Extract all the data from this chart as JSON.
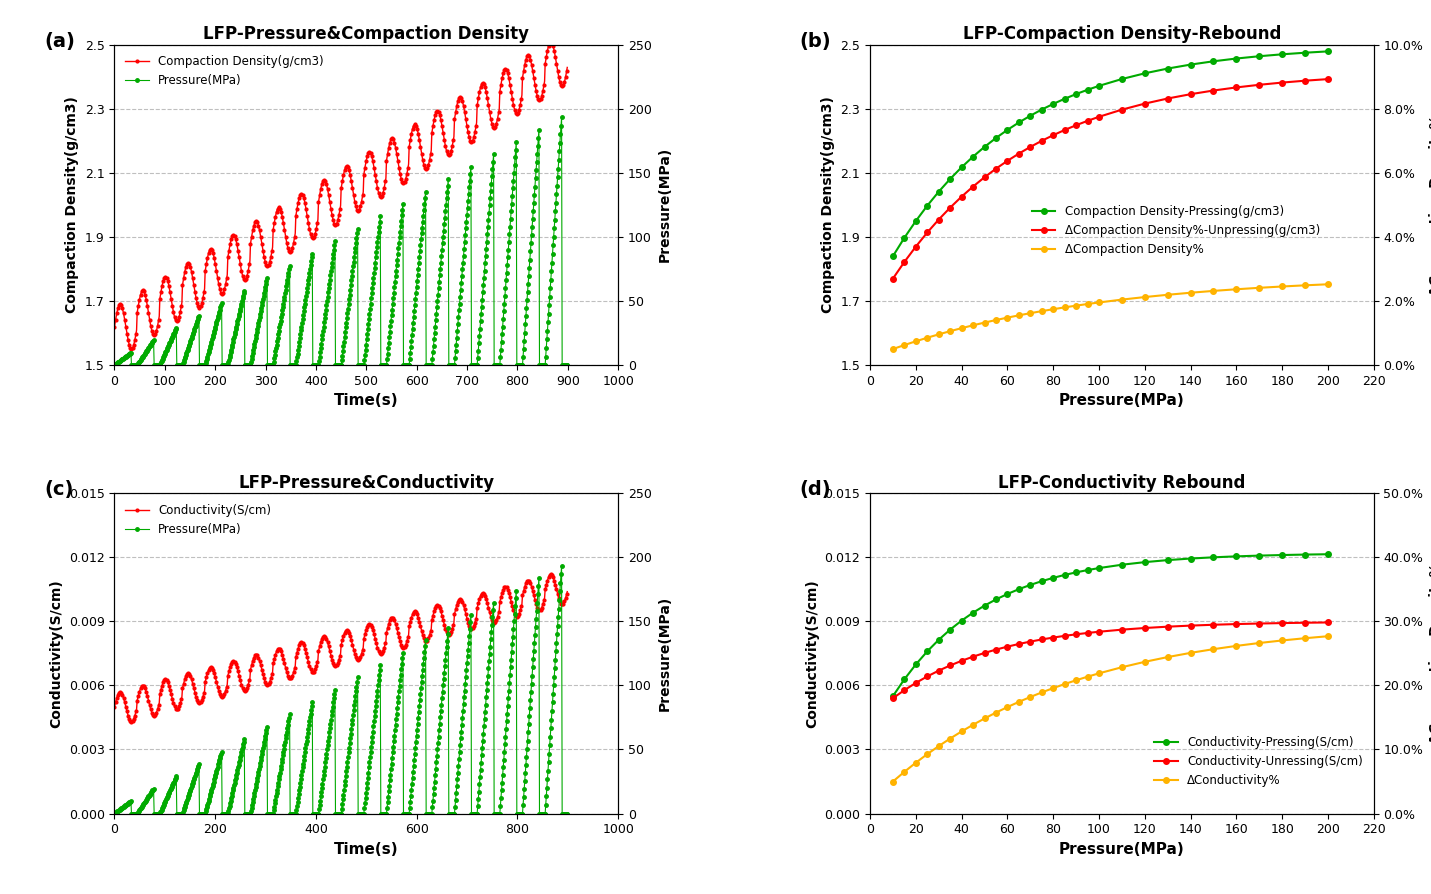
{
  "panel_a": {
    "title": "LFP-Pressure&Compaction Density",
    "xlabel": "Time(s)",
    "ylabel_left": "Compaction Density(g/cm3)",
    "ylabel_right": "Pressure(MPa)",
    "xlim": [
      0,
      1000
    ],
    "ylim_left": [
      1.5,
      2.5
    ],
    "ylim_right": [
      0,
      250
    ],
    "yticks_left": [
      1.5,
      1.7,
      1.9,
      2.1,
      2.3,
      2.5
    ],
    "yticks_right": [
      0,
      50,
      100,
      150,
      200,
      250
    ],
    "xticks": [
      0,
      100,
      200,
      300,
      400,
      500,
      600,
      700,
      800,
      900,
      1000
    ],
    "label": "(a)",
    "density_color": "#FF0000",
    "pressure_color": "#00AA00",
    "legend_density": "Compaction Density(g/cm3)",
    "legend_pressure": "Pressure(MPa)"
  },
  "panel_b": {
    "title": "LFP-Compaction Density-Rebound",
    "xlabel": "Pressure(MPa)",
    "ylabel_left": "Compaction Density(g/cm3)",
    "ylabel_right": "ΔCompaction Density%",
    "xlim": [
      0,
      220
    ],
    "ylim_left": [
      1.5,
      2.5
    ],
    "ylim_right": [
      0.0,
      0.1
    ],
    "yticks_left": [
      1.5,
      1.7,
      1.9,
      2.1,
      2.3,
      2.5
    ],
    "yticks_right": [
      0.0,
      0.02,
      0.04,
      0.06,
      0.08,
      0.1
    ],
    "xticks": [
      0,
      20,
      40,
      60,
      80,
      100,
      120,
      140,
      160,
      180,
      200,
      220
    ],
    "label": "(b)",
    "pressing_color": "#00AA00",
    "unpressing_color": "#FF0000",
    "delta_color": "#FFB300",
    "legend_pressing": "Compaction Density-Pressing(g/cm3)",
    "legend_unpressing": "ΔCompaction Density%-Unpressing(g/cm3)",
    "legend_delta": "ΔCompaction Density%"
  },
  "panel_c": {
    "title": "LFP-Pressure&Conductivity",
    "xlabel": "Time(s)",
    "ylabel_left": "Conductivity(S/cm)",
    "ylabel_right": "Pressure(MPa)",
    "xlim": [
      0,
      1000
    ],
    "ylim_left": [
      0,
      0.015
    ],
    "ylim_right": [
      0,
      250
    ],
    "yticks_left": [
      0,
      0.003,
      0.006,
      0.009,
      0.012,
      0.015
    ],
    "yticks_right": [
      0,
      50,
      100,
      150,
      200,
      250
    ],
    "xticks": [
      0,
      200,
      400,
      600,
      800,
      1000
    ],
    "label": "(c)",
    "conductivity_color": "#FF0000",
    "pressure_color": "#00AA00",
    "legend_conductivity": "Conductivity(S/cm)",
    "legend_pressure": "Pressure(MPa)"
  },
  "panel_d": {
    "title": "LFP-Conductivity Rebound",
    "xlabel": "Pressure(MPa)",
    "ylabel_left": "Conductivity(S/cm)",
    "ylabel_right": "ΔCompaction Density%",
    "xlim": [
      0,
      220
    ],
    "ylim_left": [
      0,
      0.015
    ],
    "ylim_right": [
      0.0,
      0.5
    ],
    "yticks_left": [
      0,
      0.003,
      0.006,
      0.009,
      0.012,
      0.015
    ],
    "yticks_right": [
      0.0,
      0.1,
      0.2,
      0.3,
      0.4,
      0.5
    ],
    "xticks": [
      0,
      20,
      40,
      60,
      80,
      100,
      120,
      140,
      160,
      180,
      200,
      220
    ],
    "label": "(d)",
    "pressing_color": "#00AA00",
    "unpressing_color": "#FF0000",
    "delta_color": "#FFB300",
    "legend_pressing": "Conductivity-Pressing(S/cm)",
    "legend_unpressing": "Conductivity-Unressing(S/cm)",
    "legend_delta": "ΔConductivity%"
  }
}
